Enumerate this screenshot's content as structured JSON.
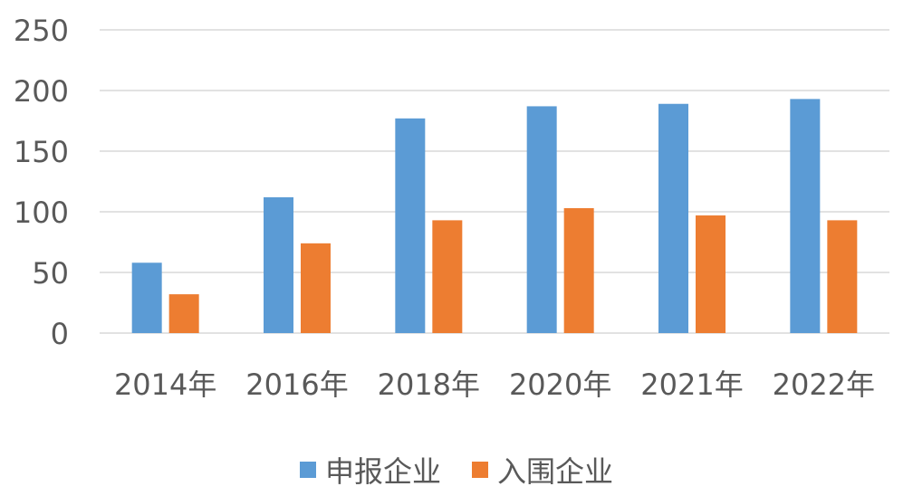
{
  "chart_data": {
    "type": "bar",
    "title": "",
    "xlabel": "",
    "ylabel": "",
    "categories": [
      "2014年",
      "2016年",
      "2018年",
      "2020年",
      "2021年",
      "2022年"
    ],
    "series": [
      {
        "name": "申报企业",
        "color": "#5B9BD5",
        "values": [
          58,
          112,
          177,
          187,
          189,
          193
        ]
      },
      {
        "name": "入围企业",
        "color": "#ED7D31",
        "values": [
          32,
          74,
          93,
          103,
          97,
          93
        ]
      }
    ],
    "ylim": [
      0,
      250
    ],
    "yticks": [
      "0",
      "50",
      "100",
      "150",
      "200",
      "250"
    ],
    "grid": true,
    "legend_position": "bottom"
  }
}
